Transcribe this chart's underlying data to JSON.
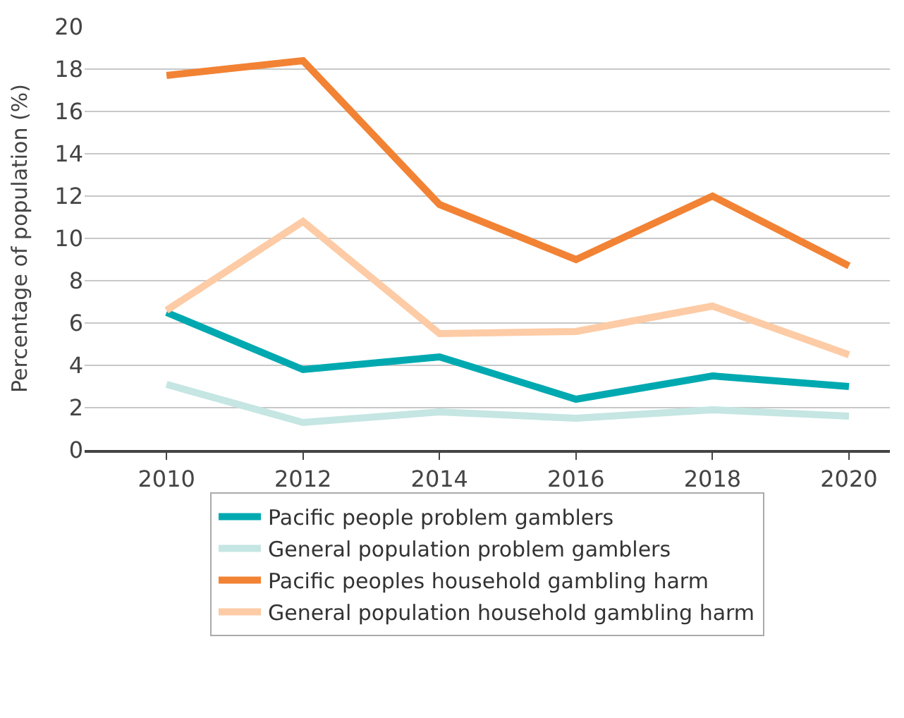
{
  "chart_data": {
    "type": "line",
    "ylabel": "Percentage of population (%)",
    "x": [
      2010,
      2012,
      2014,
      2016,
      2018,
      2020
    ],
    "xlim": [
      2008.8,
      2020.6
    ],
    "xticks": [
      2010,
      2012,
      2014,
      2016,
      2018,
      2020
    ],
    "ylim": [
      0,
      20
    ],
    "yticks": [
      0,
      2,
      4,
      6,
      8,
      10,
      12,
      14,
      16,
      18,
      20
    ],
    "grid": "y",
    "legend": "bottom",
    "marker": "none",
    "line_style": "solid",
    "series": [
      {
        "name": "Pacific people problem gamblers",
        "color": "#00a9b0",
        "values": [
          6.5,
          3.8,
          4.4,
          2.4,
          3.5,
          3.0
        ]
      },
      {
        "name": "General population problem gamblers",
        "color": "#c5e6e3",
        "values": [
          3.1,
          1.3,
          1.8,
          1.5,
          1.9,
          1.6
        ]
      },
      {
        "name": "Pacific peoples household gambling harm",
        "color": "#f28234",
        "values": [
          17.7,
          18.4,
          11.6,
          9.0,
          12.0,
          8.7
        ]
      },
      {
        "name": "General population household gambling harm",
        "color": "#fdcba5",
        "values": [
          6.6,
          10.8,
          5.5,
          5.6,
          6.8,
          4.5
        ]
      }
    ]
  }
}
